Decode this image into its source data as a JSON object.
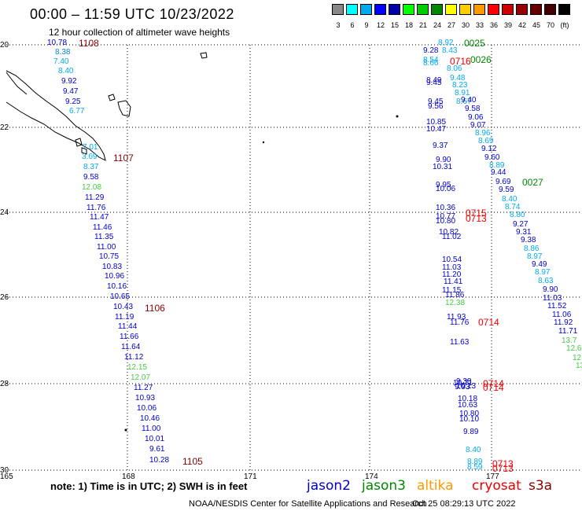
{
  "title": "00:00 – 11:59 UTC 10/23/2022",
  "subtitle": "12 hour collection of altimeter wave heights",
  "color_scale": {
    "unit": "(ft)",
    "colors": [
      "#888888",
      "#00ffff",
      "#00aaee",
      "#0000ff",
      "#0000aa",
      "#00ff00",
      "#00cc00",
      "#008800",
      "#ffff00",
      "#ffcc00",
      "#ff9900",
      "#ff0000",
      "#cc0000",
      "#990000",
      "#660000",
      "#440000",
      "#000000"
    ],
    "labels": [
      "3",
      "6",
      "9",
      "12",
      "15",
      "18",
      "21",
      "24",
      "27",
      "30",
      "33",
      "36",
      "39",
      "42",
      "45",
      "70",
      "(ft)"
    ]
  },
  "axes": {
    "lat_labels": [
      "20",
      "22",
      "24",
      "26",
      "28",
      "30"
    ],
    "lon_labels": [
      "165",
      "168",
      "171",
      "174",
      "177"
    ]
  },
  "map_points": [
    {
      "label": "10.78",
      "color": "#0000cc"
    },
    {
      "label": "1108",
      "color": "#880000"
    },
    {
      "label": "8.38",
      "color": "#0088cc"
    },
    {
      "label": "7.40",
      "color": "#00aaee"
    },
    {
      "label": "8.40",
      "color": "#00aaee"
    },
    {
      "label": "9.92",
      "color": "#0000cc"
    },
    {
      "label": "9.47",
      "color": "#0000cc"
    },
    {
      "label": "9.25",
      "color": "#0000cc"
    },
    {
      "label": "6.77",
      "color": "#00aaee"
    },
    {
      "label": "7.01",
      "color": "#00aaee"
    },
    {
      "label": "3.69",
      "color": "#00aaee"
    },
    {
      "label": "1107",
      "color": "#880000"
    },
    {
      "label": "8.37",
      "color": "#00aaee"
    },
    {
      "label": "9.58",
      "color": "#0000cc"
    },
    {
      "label": "12.08",
      "color": "#44cc44"
    },
    {
      "label": "11.29",
      "color": "#0000cc"
    },
    {
      "label": "11.76",
      "color": "#0000cc"
    },
    {
      "label": "11.47",
      "color": "#0000cc"
    },
    {
      "label": "11.46",
      "color": "#0000cc"
    },
    {
      "label": "11.35",
      "color": "#0000cc"
    },
    {
      "label": "11.00",
      "color": "#0000cc"
    },
    {
      "label": "10.75",
      "color": "#0000cc"
    },
    {
      "label": "10.83",
      "color": "#0000cc"
    },
    {
      "label": "10.96",
      "color": "#0000cc"
    },
    {
      "label": "10.16",
      "color": "#0000cc"
    },
    {
      "label": "10.65",
      "color": "#0000cc"
    },
    {
      "label": "10.43",
      "color": "#0000cc"
    },
    {
      "label": "1106",
      "color": "#880000"
    },
    {
      "label": "11.19",
      "color": "#0000cc"
    },
    {
      "label": "11.44",
      "color": "#0000cc"
    },
    {
      "label": "11.66",
      "color": "#0000cc"
    },
    {
      "label": "11.64",
      "color": "#0000cc"
    },
    {
      "label": "11.12",
      "color": "#0000cc"
    },
    {
      "label": "12.15",
      "color": "#44cc44"
    },
    {
      "label": "12.07",
      "color": "#44cc44"
    },
    {
      "label": "11.27",
      "color": "#0000cc"
    },
    {
      "label": "10.93",
      "color": "#0000cc"
    },
    {
      "label": "10.06",
      "color": "#0000cc"
    },
    {
      "label": "10.46",
      "color": "#0000cc"
    },
    {
      "label": "11.00",
      "color": "#0000cc"
    },
    {
      "label": "10.01",
      "color": "#0000cc"
    },
    {
      "label": "9.61",
      "color": "#0000cc"
    },
    {
      "label": "10.28",
      "color": "#0000cc"
    },
    {
      "label": "1105",
      "color": "#880000"
    },
    {
      "label": "8.92",
      "color": "#00aaee"
    },
    {
      "label": "0025",
      "color": "#008800"
    },
    {
      "label": "9.28",
      "color": "#0000cc"
    },
    {
      "label": "8.43",
      "color": "#00aaee"
    },
    {
      "label": "8.54",
      "color": "#00aaee"
    },
    {
      "label": "8.66",
      "color": "#00aaee"
    },
    {
      "label": "0716",
      "color": "#ee0000"
    },
    {
      "label": "0026",
      "color": "#008800"
    },
    {
      "label": "8.49",
      "color": "#0000cc"
    },
    {
      "label": "8.06",
      "color": "#00aaee"
    },
    {
      "label": "9.45",
      "color": "#0000cc"
    },
    {
      "label": "9.48",
      "color": "#00aaee"
    },
    {
      "label": "8.23",
      "color": "#00aaee"
    },
    {
      "label": "8.91",
      "color": "#00aaee"
    },
    {
      "label": "8.67",
      "color": "#00aaee"
    },
    {
      "label": "9.45",
      "color": "#0000cc"
    },
    {
      "label": "9.40",
      "color": "#0000cc"
    },
    {
      "label": "9.56",
      "color": "#0000cc"
    },
    {
      "label": "9.58",
      "color": "#0000cc"
    },
    {
      "label": "9.06",
      "color": "#0000cc"
    },
    {
      "label": "10.85",
      "color": "#0000cc"
    },
    {
      "label": "10.47",
      "color": "#0000cc"
    },
    {
      "label": "9.07",
      "color": "#0000cc"
    },
    {
      "label": "8.96",
      "color": "#00aaee"
    },
    {
      "label": "8.69",
      "color": "#00aaee"
    },
    {
      "label": "9.37",
      "color": "#0000cc"
    },
    {
      "label": "9.12",
      "color": "#0000cc"
    },
    {
      "label": "9.90",
      "color": "#0000cc"
    },
    {
      "label": "9.60",
      "color": "#0000cc"
    },
    {
      "label": "10.31",
      "color": "#0000cc"
    },
    {
      "label": "8.89",
      "color": "#00aaee"
    },
    {
      "label": "9.44",
      "color": "#0000cc"
    },
    {
      "label": "9.95",
      "color": "#0000cc"
    },
    {
      "label": "10.06",
      "color": "#0000cc"
    },
    {
      "label": "9.69",
      "color": "#0000cc"
    },
    {
      "label": "0027",
      "color": "#008800"
    },
    {
      "label": "9.59",
      "color": "#0000cc"
    },
    {
      "label": "8.40",
      "color": "#00aaee"
    },
    {
      "label": "8.74",
      "color": "#00aaee"
    },
    {
      "label": "10.36",
      "color": "#0000cc"
    },
    {
      "label": "10.77",
      "color": "#0000cc"
    },
    {
      "label": "0715",
      "color": "#ee0000"
    },
    {
      "label": "10.80",
      "color": "#0000cc"
    },
    {
      "label": "0713",
      "color": "#ee0000"
    },
    {
      "label": "8.80",
      "color": "#00aaee"
    },
    {
      "label": "9.27",
      "color": "#0000cc"
    },
    {
      "label": "10.82",
      "color": "#0000cc"
    },
    {
      "label": "11.02",
      "color": "#0000cc"
    },
    {
      "label": "9.31",
      "color": "#0000cc"
    },
    {
      "label": "9.38",
      "color": "#0000cc"
    },
    {
      "label": "8.86",
      "color": "#00aaee"
    },
    {
      "label": "8.97",
      "color": "#00aaee"
    },
    {
      "label": "10.54",
      "color": "#0000cc"
    },
    {
      "label": "11.03",
      "color": "#0000cc"
    },
    {
      "label": "9.49",
      "color": "#0000cc"
    },
    {
      "label": "11.20",
      "color": "#0000cc"
    },
    {
      "label": "11.41",
      "color": "#0000cc"
    },
    {
      "label": "8.97",
      "color": "#00aaee"
    },
    {
      "label": "8.63",
      "color": "#00aaee"
    },
    {
      "label": "11.15",
      "color": "#0000cc"
    },
    {
      "label": "9.90",
      "color": "#0000cc"
    },
    {
      "label": "11.86",
      "color": "#0000cc"
    },
    {
      "label": "11.03",
      "color": "#0000cc"
    },
    {
      "label": "12.38",
      "color": "#44cc44"
    },
    {
      "label": "11.52",
      "color": "#0000cc"
    },
    {
      "label": "11.06",
      "color": "#0000cc"
    },
    {
      "label": "11.93",
      "color": "#0000cc"
    },
    {
      "label": "11.76",
      "color": "#0000cc"
    },
    {
      "label": "0714",
      "color": "#ee0000"
    },
    {
      "label": "11.92",
      "color": "#0000cc"
    },
    {
      "label": "11.71",
      "color": "#0000cc"
    },
    {
      "label": "11.63",
      "color": "#0000cc"
    },
    {
      "label": "13.7",
      "color": "#44cc44"
    },
    {
      "label": "12.6",
      "color": "#44cc44"
    },
    {
      "label": "12.",
      "color": "#44cc44"
    },
    {
      "label": "13",
      "color": "#44cc44"
    },
    {
      "label": "10.71",
      "color": "#0000cc"
    },
    {
      "label": "9.93",
      "color": "#0000cc"
    },
    {
      "label": "0714",
      "color": "#ee0000"
    },
    {
      "label": "0714",
      "color": "#ee0000"
    },
    {
      "label": "9.38",
      "color": "#0000cc"
    },
    {
      "label": "10.13",
      "color": "#0000cc"
    },
    {
      "label": "10.18",
      "color": "#0000cc"
    },
    {
      "label": "10.63",
      "color": "#0000cc"
    },
    {
      "label": "10.80",
      "color": "#0000cc"
    },
    {
      "label": "10.10",
      "color": "#0000cc"
    },
    {
      "label": "9.89",
      "color": "#0000cc"
    },
    {
      "label": "8.40",
      "color": "#00aaee"
    },
    {
      "label": "8.89",
      "color": "#00aaee"
    },
    {
      "label": "8.59",
      "color": "#00aaee"
    },
    {
      "label": "0713",
      "color": "#ee0000"
    },
    {
      "label": "0713",
      "color": "#ee0000"
    }
  ],
  "footer": {
    "note": "note: 1) Time is in UTC; 2) SWH is in feet",
    "satellites": [
      {
        "name": "jason2",
        "color": "#0000cc"
      },
      {
        "name": "jason3",
        "color": "#008800"
      },
      {
        "name": "altika",
        "color": "#ff9900"
      },
      {
        "name": "cryosat",
        "color": "#ee0000"
      },
      {
        "name": "s3a",
        "color": "#880000"
      }
    ],
    "credit": "NOAA/NESDIS Center for Satellite Applications and Research",
    "timestamp": "Oct 25 08:29:13 UTC 2022"
  }
}
